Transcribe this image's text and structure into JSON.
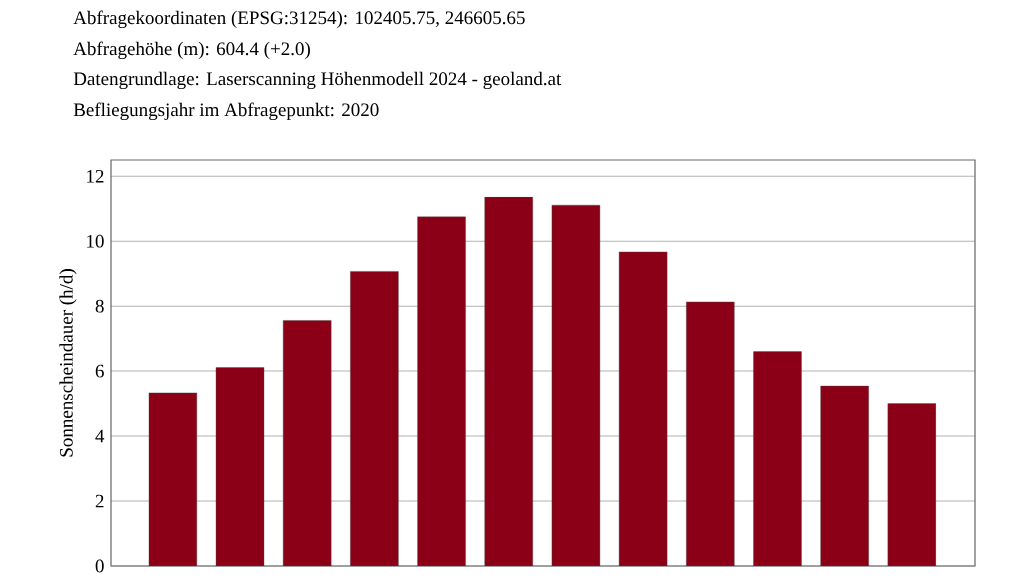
{
  "chart_data": {
    "type": "bar",
    "annotations": [
      "Abfragekoordinaten (EPSG:31254): 102405.75, 246605.65",
      "Abfragehöhe (m): 604.4 (+2.0)",
      "Datengrundlage: Laserscanning Höhenmodell 2024 - geoland.at",
      "Befliegungsjahr im Abfragepunkt: 2020"
    ],
    "ylabel": "Sonnenscheindauer (h/d)",
    "categories": [
      null,
      null,
      null,
      null,
      null,
      null,
      null,
      null,
      null,
      null,
      null,
      null
    ],
    "values": [
      5.33,
      6.11,
      7.56,
      9.07,
      10.75,
      11.36,
      11.11,
      9.67,
      8.13,
      6.6,
      5.54,
      5.0
    ],
    "color": "#8b0016",
    "ylim": [
      0,
      12.5
    ],
    "yticks": [
      0,
      2,
      4,
      6,
      8,
      10,
      12
    ],
    "grid": "y"
  }
}
